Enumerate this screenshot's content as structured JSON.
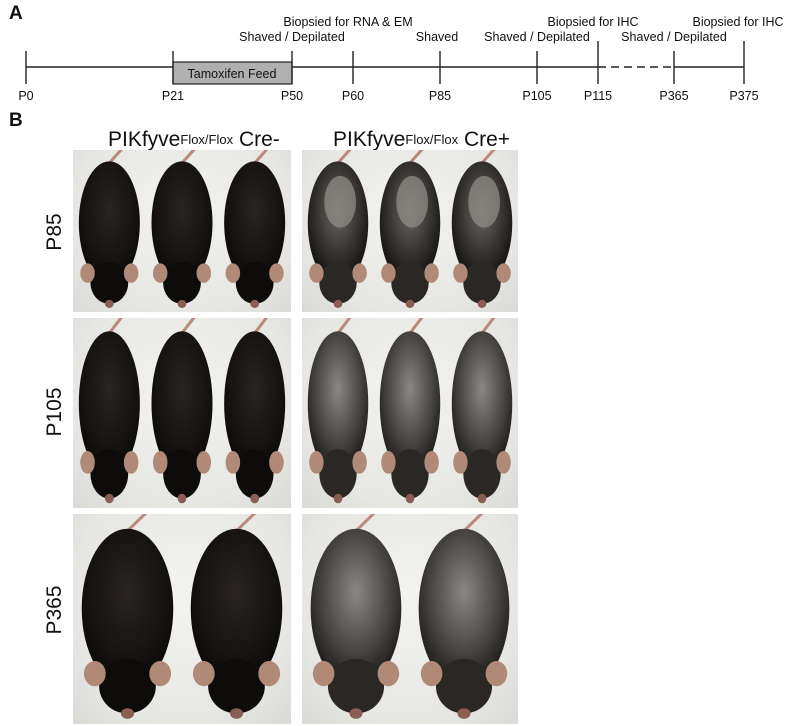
{
  "panel_a": {
    "letter": "A",
    "feed_label": "Tamoxifen Feed",
    "ticks": [
      "P0",
      "P21",
      "P50",
      "P60",
      "P85",
      "P105",
      "P115",
      "P365",
      "P375"
    ],
    "events": {
      "biopsy_rna_em": "Biopsied for RNA & EM",
      "shaved_p50": "Shaved / Depilated",
      "shaved_p85": "Shaved",
      "biopsy_ihc_1": "Biopsied for IHC",
      "shaved_p105": "Shaved / Depilated",
      "shaved_p365": "Shaved / Depilated",
      "biopsy_ihc_2": "Biopsied for IHC"
    },
    "colors": {
      "line": "#222222",
      "feed_fill": "#b0b0b0"
    }
  },
  "panel_b": {
    "letter": "B",
    "columns": [
      {
        "gene": "PIKfyve",
        "sup": "Flox/Flox",
        "cre": "Cre-"
      },
      {
        "gene": "PIKfyve",
        "sup": "Flox/Flox",
        "cre": "Cre+"
      }
    ],
    "rows": [
      "P85",
      "P105",
      "P365"
    ]
  }
}
